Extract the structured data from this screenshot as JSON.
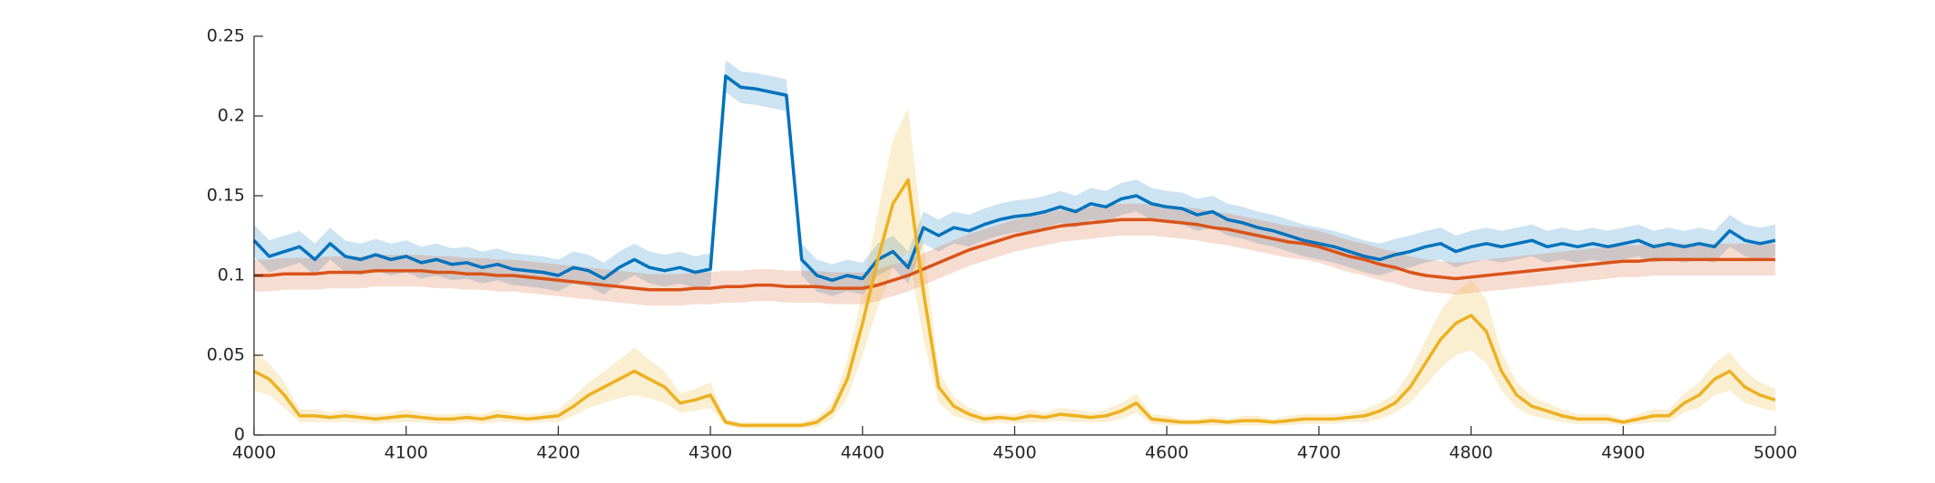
{
  "chart_data": {
    "type": "line",
    "x": [
      4000,
      4010,
      4020,
      4030,
      4040,
      4050,
      4060,
      4070,
      4080,
      4090,
      4100,
      4110,
      4120,
      4130,
      4140,
      4150,
      4160,
      4170,
      4180,
      4190,
      4200,
      4210,
      4220,
      4230,
      4240,
      4250,
      4260,
      4270,
      4280,
      4290,
      4300,
      4310,
      4320,
      4330,
      4340,
      4350,
      4360,
      4370,
      4380,
      4390,
      4400,
      4410,
      4420,
      4430,
      4440,
      4450,
      4460,
      4470,
      4480,
      4490,
      4500,
      4510,
      4520,
      4530,
      4540,
      4550,
      4560,
      4570,
      4580,
      4590,
      4600,
      4610,
      4620,
      4630,
      4640,
      4650,
      4660,
      4670,
      4680,
      4690,
      4700,
      4710,
      4720,
      4730,
      4740,
      4750,
      4760,
      4770,
      4780,
      4790,
      4800,
      4810,
      4820,
      4830,
      4840,
      4850,
      4860,
      4870,
      4880,
      4890,
      4900,
      4910,
      4920,
      4930,
      4940,
      4950,
      4960,
      4970,
      4980,
      4990,
      5000
    ],
    "series": [
      {
        "color": "#0072bd",
        "error": 0.01,
        "values": [
          0.122,
          0.112,
          0.115,
          0.118,
          0.11,
          0.12,
          0.112,
          0.11,
          0.113,
          0.11,
          0.112,
          0.108,
          0.11,
          0.107,
          0.108,
          0.105,
          0.107,
          0.104,
          0.103,
          0.102,
          0.1,
          0.105,
          0.103,
          0.098,
          0.105,
          0.11,
          0.105,
          0.103,
          0.105,
          0.102,
          0.104,
          0.225,
          0.218,
          0.217,
          0.215,
          0.213,
          0.11,
          0.1,
          0.097,
          0.1,
          0.098,
          0.11,
          0.115,
          0.105,
          0.13,
          0.125,
          0.13,
          0.128,
          0.132,
          0.135,
          0.137,
          0.138,
          0.14,
          0.143,
          0.14,
          0.145,
          0.143,
          0.148,
          0.15,
          0.145,
          0.143,
          0.142,
          0.138,
          0.14,
          0.135,
          0.133,
          0.13,
          0.128,
          0.125,
          0.122,
          0.12,
          0.118,
          0.115,
          0.112,
          0.11,
          0.113,
          0.115,
          0.118,
          0.12,
          0.115,
          0.118,
          0.12,
          0.118,
          0.12,
          0.122,
          0.118,
          0.12,
          0.118,
          0.12,
          0.118,
          0.12,
          0.122,
          0.118,
          0.12,
          0.118,
          0.12,
          0.118,
          0.128,
          0.122,
          0.12,
          0.122
        ]
      },
      {
        "color": "#d95319",
        "error": 0.01,
        "values": [
          0.1,
          0.1,
          0.101,
          0.101,
          0.101,
          0.102,
          0.102,
          0.102,
          0.103,
          0.103,
          0.103,
          0.103,
          0.102,
          0.102,
          0.101,
          0.101,
          0.1,
          0.1,
          0.099,
          0.098,
          0.097,
          0.096,
          0.095,
          0.094,
          0.093,
          0.092,
          0.091,
          0.091,
          0.091,
          0.092,
          0.092,
          0.093,
          0.093,
          0.094,
          0.094,
          0.093,
          0.093,
          0.093,
          0.092,
          0.092,
          0.092,
          0.094,
          0.097,
          0.1,
          0.104,
          0.108,
          0.112,
          0.116,
          0.119,
          0.122,
          0.125,
          0.127,
          0.129,
          0.131,
          0.132,
          0.133,
          0.134,
          0.135,
          0.135,
          0.135,
          0.134,
          0.133,
          0.132,
          0.13,
          0.129,
          0.127,
          0.125,
          0.123,
          0.121,
          0.12,
          0.118,
          0.115,
          0.112,
          0.11,
          0.107,
          0.105,
          0.102,
          0.1,
          0.099,
          0.098,
          0.099,
          0.1,
          0.101,
          0.102,
          0.103,
          0.104,
          0.105,
          0.106,
          0.107,
          0.108,
          0.109,
          0.109,
          0.11,
          0.11,
          0.11,
          0.11,
          0.11,
          0.11,
          0.11,
          0.11,
          0.11
        ]
      },
      {
        "color": "#edb120",
        "values": [
          0.04,
          0.035,
          0.025,
          0.012,
          0.012,
          0.011,
          0.012,
          0.011,
          0.01,
          0.011,
          0.012,
          0.011,
          0.01,
          0.01,
          0.011,
          0.01,
          0.012,
          0.011,
          0.01,
          0.011,
          0.012,
          0.018,
          0.025,
          0.03,
          0.035,
          0.04,
          0.035,
          0.03,
          0.02,
          0.022,
          0.025,
          0.008,
          0.006,
          0.006,
          0.006,
          0.006,
          0.006,
          0.008,
          0.015,
          0.035,
          0.07,
          0.11,
          0.145,
          0.16,
          0.09,
          0.03,
          0.018,
          0.013,
          0.01,
          0.011,
          0.01,
          0.012,
          0.011,
          0.013,
          0.012,
          0.011,
          0.012,
          0.015,
          0.02,
          0.01,
          0.009,
          0.008,
          0.008,
          0.009,
          0.008,
          0.009,
          0.009,
          0.008,
          0.009,
          0.01,
          0.01,
          0.01,
          0.011,
          0.012,
          0.015,
          0.02,
          0.03,
          0.045,
          0.06,
          0.07,
          0.075,
          0.065,
          0.04,
          0.025,
          0.018,
          0.015,
          0.012,
          0.01,
          0.01,
          0.01,
          0.008,
          0.01,
          0.012,
          0.012,
          0.02,
          0.025,
          0.035,
          0.04,
          0.03,
          0.025,
          0.022
        ],
        "error": [
          0.012,
          0.01,
          0.008,
          0.004,
          0.004,
          0.003,
          0.004,
          0.003,
          0.003,
          0.003,
          0.004,
          0.003,
          0.003,
          0.003,
          0.003,
          0.003,
          0.004,
          0.003,
          0.003,
          0.003,
          0.004,
          0.006,
          0.008,
          0.01,
          0.012,
          0.015,
          0.012,
          0.01,
          0.006,
          0.007,
          0.008,
          0.002,
          0.002,
          0.002,
          0.002,
          0.002,
          0.002,
          0.003,
          0.005,
          0.012,
          0.02,
          0.03,
          0.04,
          0.045,
          0.03,
          0.01,
          0.006,
          0.004,
          0.003,
          0.003,
          0.003,
          0.004,
          0.003,
          0.004,
          0.004,
          0.003,
          0.004,
          0.005,
          0.006,
          0.003,
          0.003,
          0.002,
          0.002,
          0.003,
          0.002,
          0.003,
          0.003,
          0.002,
          0.003,
          0.003,
          0.003,
          0.003,
          0.003,
          0.004,
          0.005,
          0.006,
          0.01,
          0.014,
          0.018,
          0.02,
          0.022,
          0.02,
          0.012,
          0.008,
          0.006,
          0.005,
          0.004,
          0.003,
          0.003,
          0.003,
          0.002,
          0.003,
          0.004,
          0.004,
          0.006,
          0.008,
          0.01,
          0.012,
          0.01,
          0.008,
          0.007
        ]
      }
    ],
    "xlim": [
      4000,
      5000
    ],
    "xticks": [
      4000,
      4100,
      4200,
      4300,
      4400,
      4500,
      4600,
      4700,
      4800,
      4900,
      5000
    ],
    "ylim": [
      0,
      0.25
    ],
    "yticks": [
      0,
      0.05,
      0.1,
      0.15,
      0.2,
      0.25
    ]
  }
}
